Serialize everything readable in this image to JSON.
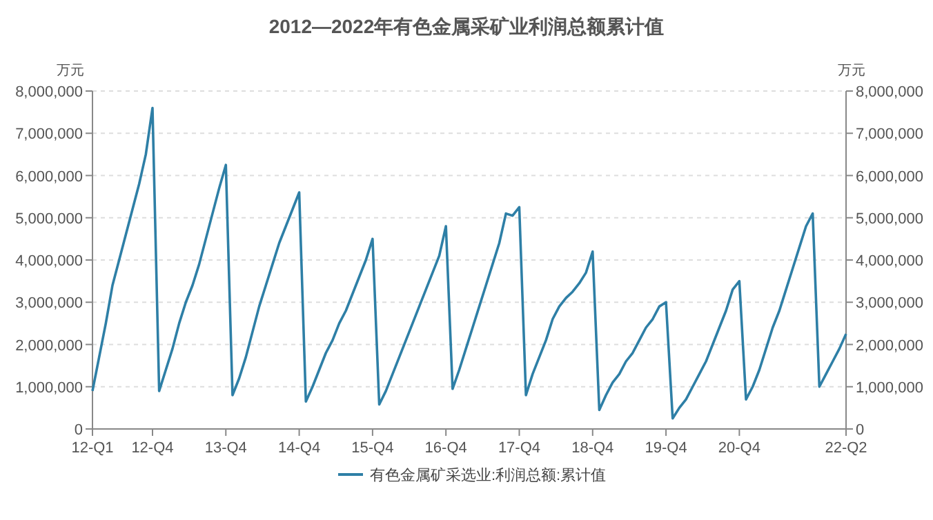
{
  "chart_data": {
    "type": "line",
    "title": "2012—2022年有色金属采矿业利润总额累计值",
    "ylabel": "万元",
    "y2label": "万元",
    "categories": [
      "12-Q1",
      null,
      null,
      null,
      null,
      null,
      null,
      null,
      null,
      "12-Q4",
      null,
      null,
      null,
      null,
      null,
      null,
      null,
      null,
      null,
      null,
      "13-Q4",
      null,
      null,
      null,
      null,
      null,
      null,
      null,
      null,
      null,
      null,
      "14-Q4",
      null,
      null,
      null,
      null,
      null,
      null,
      null,
      null,
      null,
      null,
      "15-Q4",
      null,
      null,
      null,
      null,
      null,
      null,
      null,
      null,
      null,
      null,
      "16-Q4",
      null,
      null,
      null,
      null,
      null,
      null,
      null,
      null,
      null,
      null,
      "17-Q4",
      null,
      null,
      null,
      null,
      null,
      null,
      null,
      null,
      null,
      null,
      "18-Q4",
      null,
      null,
      null,
      null,
      null,
      null,
      null,
      null,
      null,
      null,
      "19-Q4",
      null,
      null,
      null,
      null,
      null,
      null,
      null,
      null,
      null,
      null,
      "20-Q4",
      null,
      null,
      null,
      null,
      null,
      null,
      null,
      null,
      null,
      null,
      null,
      null,
      null,
      null,
      null,
      "22-Q2"
    ],
    "series": [
      {
        "name": "有色金属矿采选业:利润总额:累计值",
        "color": "#2e7fa6",
        "values": [
          900000,
          1700000,
          2500000,
          3400000,
          4000000,
          4600000,
          5200000,
          5800000,
          6500000,
          7600000,
          900000,
          1400000,
          1900000,
          2500000,
          3000000,
          3400000,
          3900000,
          4500000,
          5100000,
          5700000,
          6250000,
          800000,
          1200000,
          1700000,
          2300000,
          2900000,
          3400000,
          3900000,
          4400000,
          4800000,
          5200000,
          5600000,
          650000,
          1000000,
          1400000,
          1800000,
          2100000,
          2500000,
          2800000,
          3200000,
          3600000,
          4000000,
          4500000,
          580000,
          900000,
          1300000,
          1700000,
          2100000,
          2500000,
          2900000,
          3300000,
          3700000,
          4100000,
          4800000,
          950000,
          1400000,
          1900000,
          2400000,
          2900000,
          3400000,
          3900000,
          4400000,
          5100000,
          5050000,
          5250000,
          800000,
          1300000,
          1700000,
          2100000,
          2600000,
          2900000,
          3100000,
          3250000,
          3450000,
          3700000,
          4200000,
          450000,
          800000,
          1100000,
          1300000,
          1600000,
          1800000,
          2100000,
          2400000,
          2600000,
          2900000,
          3000000,
          250000,
          500000,
          700000,
          1000000,
          1300000,
          1600000,
          2000000,
          2400000,
          2800000,
          3300000,
          3500000,
          700000,
          1000000,
          1400000,
          1900000,
          2400000,
          2800000,
          3300000,
          3800000,
          4300000,
          4800000,
          5100000,
          1000000,
          1300000,
          1600000,
          1900000,
          2250000
        ]
      }
    ],
    "ylim": [
      0,
      8000000
    ],
    "yticks": [
      {
        "value": 0,
        "label": "0"
      },
      {
        "value": 1000000,
        "label": "1,000,000"
      },
      {
        "value": 2000000,
        "label": "2,000,000"
      },
      {
        "value": 3000000,
        "label": "3,000,000"
      },
      {
        "value": 4000000,
        "label": "4,000,000"
      },
      {
        "value": 5000000,
        "label": "5,000,000"
      },
      {
        "value": 6000000,
        "label": "6,000,000"
      },
      {
        "value": 7000000,
        "label": "7,000,000"
      },
      {
        "value": 8000000,
        "label": "8,000,000"
      }
    ],
    "y2lim": [
      0,
      8000000
    ],
    "y2ticks": [
      {
        "value": 0,
        "label": "0"
      },
      {
        "value": 1000000,
        "label": "1,000,000"
      },
      {
        "value": 2000000,
        "label": "2,000,000"
      },
      {
        "value": 3000000,
        "label": "3,000,000"
      },
      {
        "value": 4000000,
        "label": "4,000,000"
      },
      {
        "value": 5000000,
        "label": "5,000,000"
      },
      {
        "value": 6000000,
        "label": "6,000,000"
      },
      {
        "value": 7000000,
        "label": "7,000,000"
      },
      {
        "value": 8000000,
        "label": "8,000,000"
      }
    ],
    "grid": "y",
    "legend": "bottom",
    "marker": "none",
    "line_style": "solid"
  }
}
